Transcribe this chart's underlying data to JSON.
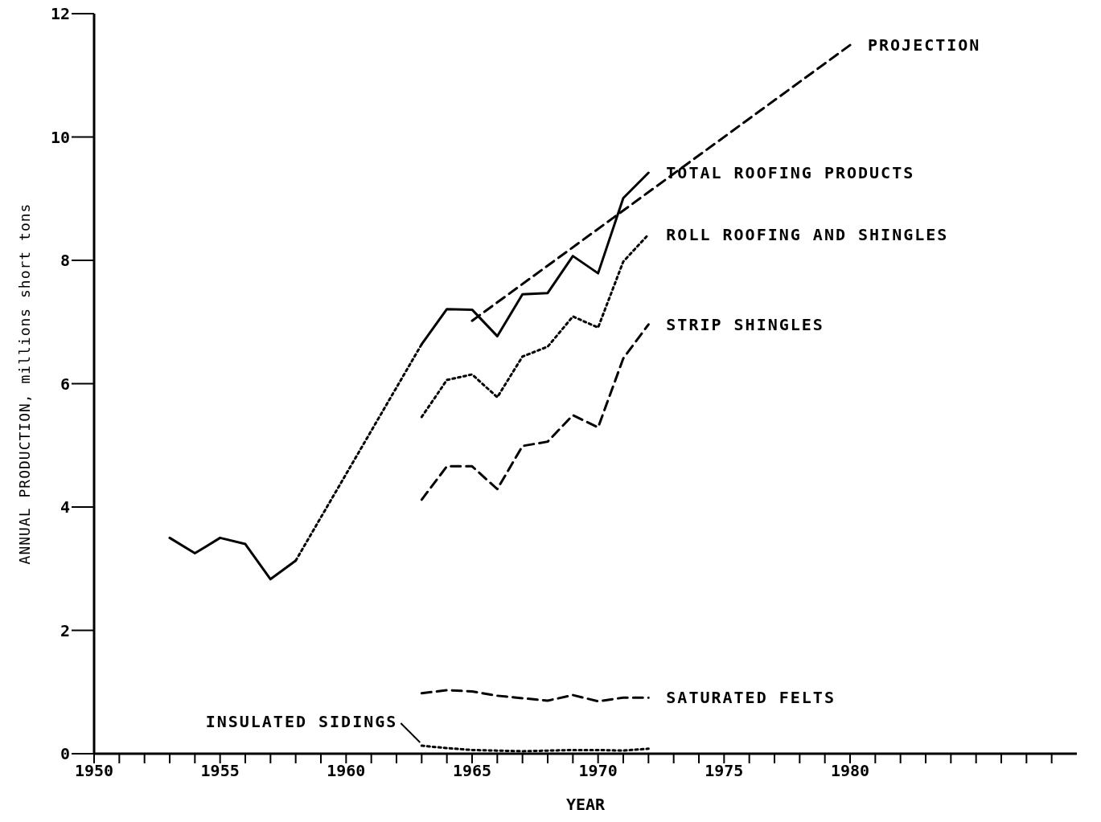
{
  "chart_data": {
    "type": "line",
    "xlabel": "YEAR",
    "ylabel": "ANNUAL PRODUCTION, millions short tons",
    "xlim": [
      1950,
      1989
    ],
    "xticks": [
      1950,
      {
        "value": 1951,
        "label": null
      },
      {
        "value": 1952,
        "label": null
      },
      {
        "value": 1953,
        "label": null
      },
      {
        "value": 1954,
        "label": null
      },
      1955,
      {
        "value": 1956,
        "label": null
      },
      {
        "value": 1957,
        "label": null
      },
      {
        "value": 1958,
        "label": null
      },
      {
        "value": 1959,
        "label": null
      },
      1960,
      {
        "value": 1961,
        "label": null
      },
      {
        "value": 1962,
        "label": null
      },
      {
        "value": 1963,
        "label": null
      },
      {
        "value": 1964,
        "label": null
      },
      1965,
      {
        "value": 1966,
        "label": null
      },
      {
        "value": 1967,
        "label": null
      },
      {
        "value": 1968,
        "label": null
      },
      {
        "value": 1969,
        "label": null
      },
      1970,
      {
        "value": 1971,
        "label": null
      },
      {
        "value": 1972,
        "label": null
      },
      {
        "value": 1973,
        "label": null
      },
      {
        "value": 1974,
        "label": null
      },
      1975,
      {
        "value": 1976,
        "label": null
      },
      {
        "value": 1977,
        "label": null
      },
      {
        "value": 1978,
        "label": null
      },
      {
        "value": 1979,
        "label": null
      },
      1980,
      {
        "value": 1981,
        "label": null
      },
      {
        "value": 1982,
        "label": null
      },
      {
        "value": 1983,
        "label": null
      },
      {
        "value": 1984,
        "label": null
      },
      {
        "value": 1985,
        "label": null
      },
      {
        "value": 1986,
        "label": null
      },
      {
        "value": 1987,
        "label": null
      },
      {
        "value": 1988,
        "label": null
      }
    ],
    "ylim": [
      0,
      12
    ],
    "yticks": [
      0,
      2,
      4,
      6,
      8,
      10,
      12
    ],
    "marker": "none",
    "series": [
      {
        "color": "#000000",
        "line_style": "solid",
        "x": [
          1953,
          1954,
          1955,
          1956,
          1957,
          1958
        ],
        "values": [
          3.5,
          3.25,
          3.5,
          3.4,
          2.83,
          3.13
        ]
      },
      {
        "color": "#000000",
        "line_style": "dotted",
        "x": [
          1958,
          1963
        ],
        "values": [
          3.13,
          6.64
        ]
      },
      {
        "color": "#000000",
        "line_style": "solid",
        "x": [
          1963,
          1964,
          1965,
          1966,
          1967,
          1968,
          1969,
          1970,
          1971,
          1972
        ],
        "values": [
          6.64,
          7.21,
          7.2,
          6.77,
          7.45,
          7.47,
          8.07,
          7.79,
          9.01,
          9.42
        ]
      },
      {
        "color": "#000000",
        "line_style": "dotted",
        "x": [
          1963,
          1964,
          1965,
          1966,
          1967,
          1968,
          1969,
          1970,
          1971,
          1972
        ],
        "values": [
          5.46,
          6.06,
          6.15,
          5.78,
          6.44,
          6.6,
          7.09,
          6.91,
          7.98,
          8.42
        ]
      },
      {
        "color": "#000000",
        "line_style": "dashed",
        "x": [
          1963,
          1964,
          1965,
          1966,
          1967,
          1968,
          1969,
          1970,
          1971,
          1972
        ],
        "values": [
          4.12,
          4.66,
          4.66,
          4.29,
          4.99,
          5.06,
          5.49,
          5.29,
          6.41,
          6.96
        ]
      },
      {
        "color": "#000000",
        "line_style": "dashed",
        "x": [
          1963,
          1964,
          1965,
          1966,
          1967,
          1968,
          1969,
          1970,
          1971,
          1972
        ],
        "values": [
          0.98,
          1.03,
          1.01,
          0.94,
          0.9,
          0.86,
          0.95,
          0.85,
          0.91,
          0.91
        ]
      },
      {
        "color": "#000000",
        "line_style": "dotted",
        "x": [
          1963,
          1964,
          1965,
          1966,
          1967,
          1968,
          1969,
          1970,
          1971,
          1972
        ],
        "values": [
          0.13,
          0.09,
          0.06,
          0.05,
          0.04,
          0.05,
          0.06,
          0.06,
          0.05,
          0.08
        ]
      },
      {
        "color": "#000000",
        "line_style": "dashed",
        "x": [
          1965,
          1980
        ],
        "values": [
          7.02,
          11.49
        ]
      }
    ],
    "annotations": [
      {
        "text": "PROJECTION",
        "x": 1980,
        "y": 11.49
      },
      {
        "text": "TOTAL ROOFING PRODUCTS",
        "x": 1972,
        "y": 9.42
      },
      {
        "text": "ROLL ROOFING AND SHINGLES",
        "x": 1972,
        "y": 8.42
      },
      {
        "text": "STRIP SHINGLES",
        "x": 1972,
        "y": 6.96
      },
      {
        "text": "SATURATED FELTS",
        "x": 1972,
        "y": 0.91
      },
      {
        "text": "INSULATED SIDINGS",
        "x": 1963,
        "y": 0.13
      }
    ]
  }
}
